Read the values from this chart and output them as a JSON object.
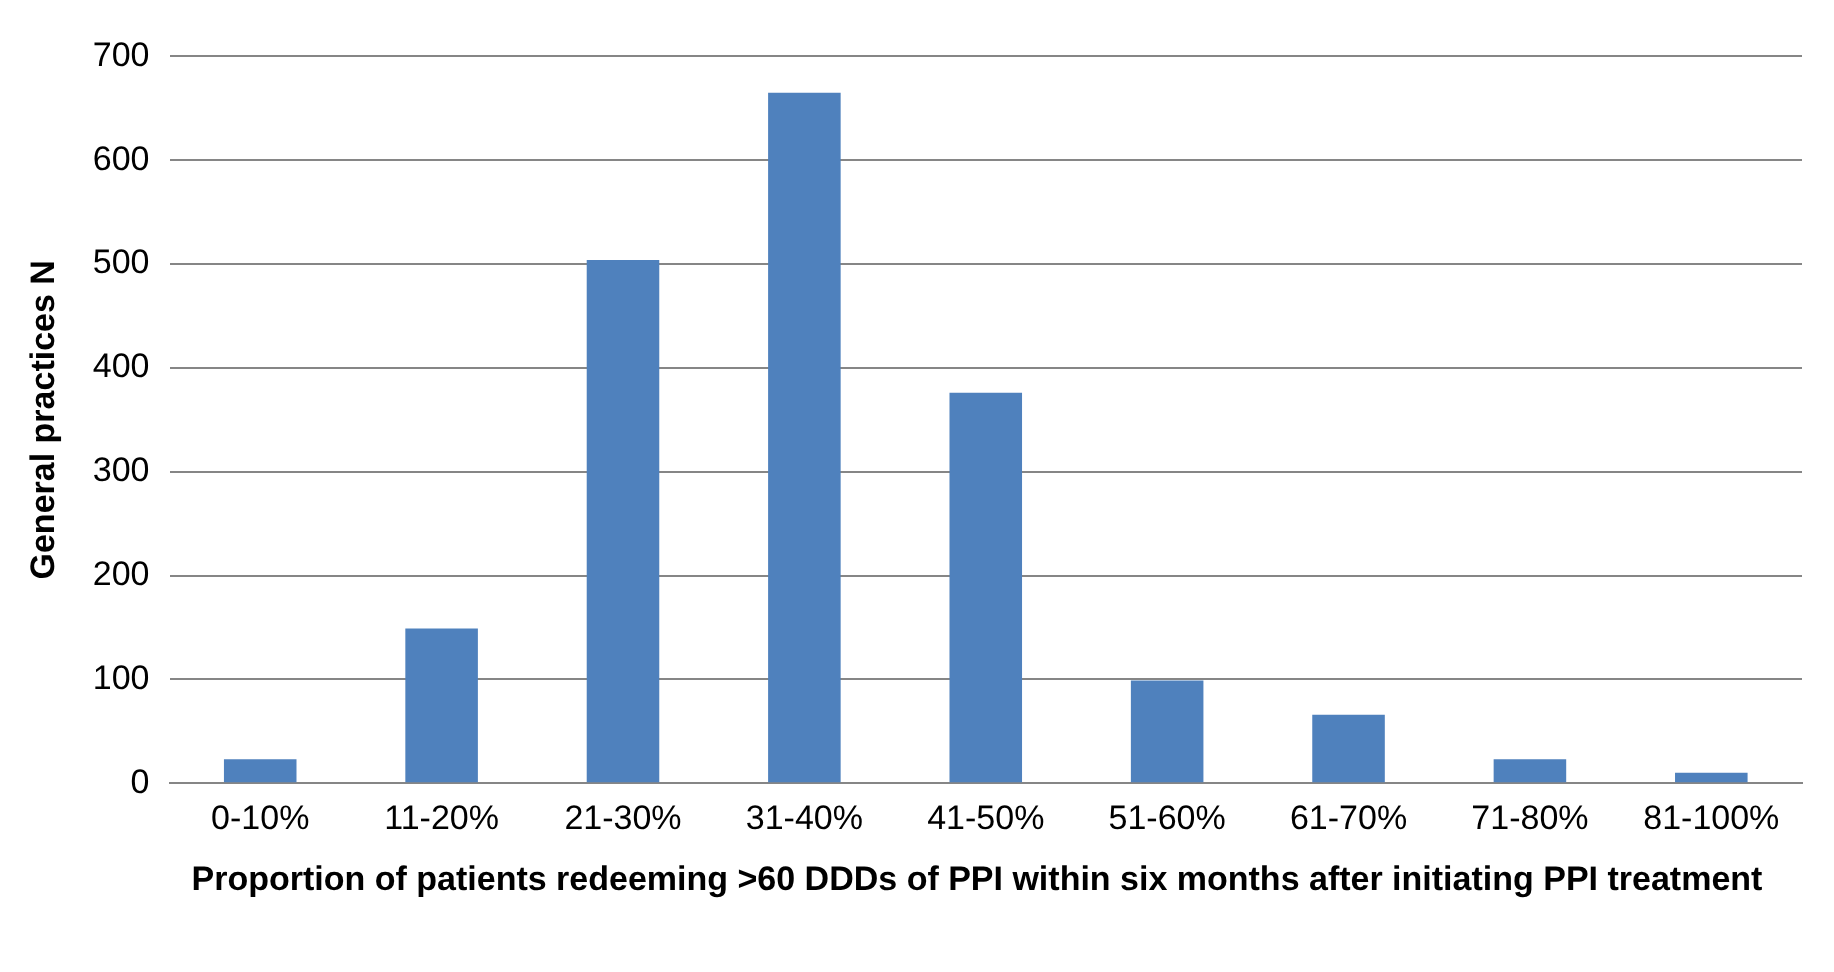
{
  "chart_data": {
    "type": "bar",
    "xlabel": "Proportion of patients redeeming >60 DDDs of PPI within six months after initiating PPI treatment",
    "ylabel": "General practices N",
    "categories": [
      "0-10%",
      "11-20%",
      "21-30%",
      "31-40%",
      "41-50%",
      "51-60%",
      "61-70%",
      "71-80%",
      "81-100%"
    ],
    "values": [
      23,
      149,
      504,
      665,
      376,
      99,
      66,
      23,
      10
    ],
    "color": "#4f81bd",
    "ylim": [
      0,
      700
    ],
    "yticks": [
      0,
      100,
      200,
      300,
      400,
      500,
      600,
      700
    ],
    "grid": "y",
    "legend": false
  }
}
